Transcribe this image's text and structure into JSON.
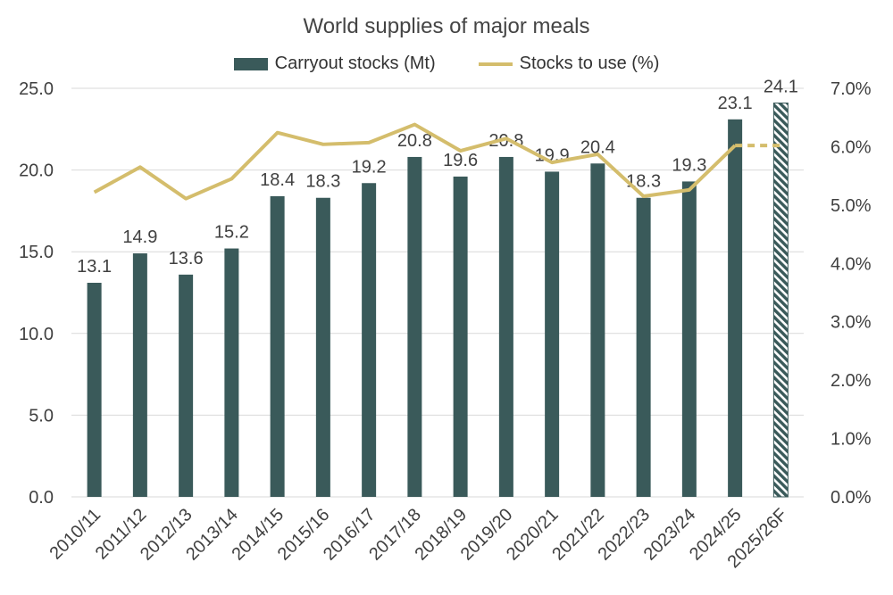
{
  "chart_data": {
    "type": "bar",
    "title": "World supplies of major meals",
    "categories": [
      "2010/11",
      "2011/12",
      "2012/13",
      "2013/14",
      "2014/15",
      "2015/16",
      "2016/17",
      "2017/18",
      "2018/19",
      "2019/20",
      "2020/21",
      "2021/22",
      "2022/23",
      "2023/24",
      "2024/25",
      "2025/26F"
    ],
    "series": [
      {
        "name": "Carryout stocks (Mt)",
        "type": "bar",
        "axis": "left",
        "values": [
          13.1,
          14.9,
          13.6,
          15.2,
          18.4,
          18.3,
          19.2,
          20.8,
          19.6,
          20.8,
          19.9,
          20.4,
          18.3,
          19.3,
          23.1,
          24.1
        ],
        "data_labels": [
          "13.1",
          "14.9",
          "13.6",
          "15.2",
          "18.4",
          "18.3",
          "19.2",
          "20.8",
          "19.6",
          "20.8",
          "19.9",
          "20.4",
          "18.3",
          "19.3",
          "23.1",
          "24.1"
        ],
        "forecast_index": 15
      },
      {
        "name": "Stocks to use (%)",
        "type": "line",
        "axis": "right",
        "values": [
          5.22,
          5.65,
          5.11,
          5.45,
          6.24,
          6.04,
          6.07,
          6.38,
          5.93,
          6.14,
          5.73,
          5.87,
          5.15,
          5.26,
          6.02,
          6.02
        ],
        "forecast_from_index": 14
      }
    ],
    "y_left": {
      "min": 0,
      "max": 25,
      "ticks": [
        "0.0",
        "5.0",
        "10.0",
        "15.0",
        "20.0",
        "25.0"
      ]
    },
    "y_right": {
      "min": 0,
      "max": 7,
      "ticks": [
        "0.0%",
        "1.0%",
        "2.0%",
        "3.0%",
        "4.0%",
        "5.0%",
        "6.0%",
        "7.0%"
      ]
    },
    "grid": true,
    "legend_position": "top",
    "colors": {
      "bar": "#3a5a5a",
      "line": "#d4bd6c",
      "grid": "#d9d9d9",
      "text": "#404040"
    }
  }
}
